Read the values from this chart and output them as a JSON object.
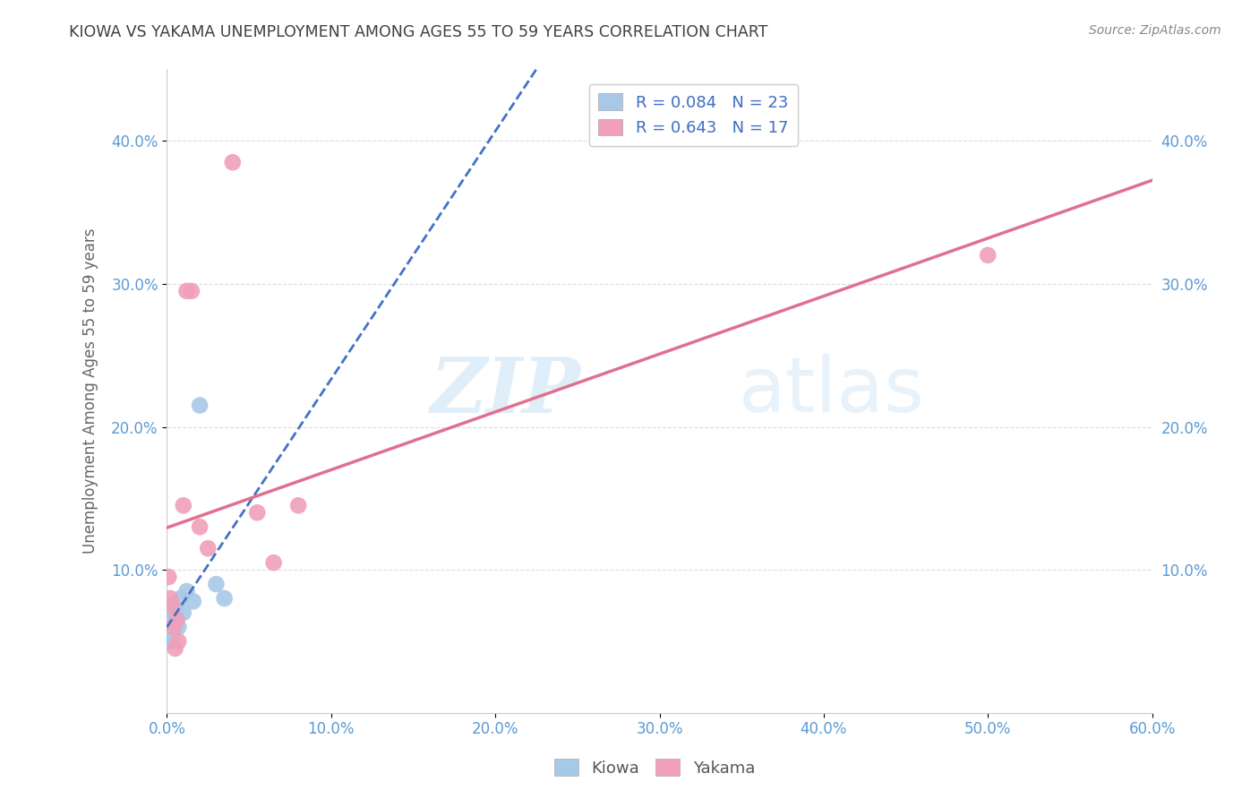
{
  "title": "KIOWA VS YAKAMA UNEMPLOYMENT AMONG AGES 55 TO 59 YEARS CORRELATION CHART",
  "source": "Source: ZipAtlas.com",
  "ylabel": "Unemployment Among Ages 55 to 59 years",
  "background_color": "#ffffff",
  "kiowa_color": "#a8c8e8",
  "yakama_color": "#f0a0b8",
  "kiowa_line_color": "#4472c4",
  "yakama_line_color": "#e07090",
  "kiowa_R": 0.084,
  "kiowa_N": 23,
  "yakama_R": 0.643,
  "yakama_N": 17,
  "xlim": [
    0.0,
    0.6
  ],
  "ylim": [
    0.0,
    0.45
  ],
  "xticks": [
    0.0,
    0.1,
    0.2,
    0.3,
    0.4,
    0.5,
    0.6
  ],
  "yticks": [
    0.1,
    0.2,
    0.3,
    0.4
  ],
  "kiowa_x": [
    0.0005,
    0.001,
    0.001,
    0.0015,
    0.002,
    0.002,
    0.002,
    0.003,
    0.003,
    0.003,
    0.004,
    0.004,
    0.005,
    0.005,
    0.006,
    0.007,
    0.008,
    0.01,
    0.012,
    0.016,
    0.02,
    0.03,
    0.035
  ],
  "kiowa_y": [
    0.055,
    0.058,
    0.062,
    0.05,
    0.06,
    0.065,
    0.07,
    0.055,
    0.06,
    0.075,
    0.058,
    0.068,
    0.062,
    0.072,
    0.065,
    0.06,
    0.08,
    0.07,
    0.085,
    0.078,
    0.215,
    0.09,
    0.08
  ],
  "yakama_x": [
    0.001,
    0.002,
    0.003,
    0.004,
    0.005,
    0.006,
    0.007,
    0.01,
    0.012,
    0.015,
    0.02,
    0.025,
    0.04,
    0.055,
    0.065,
    0.08,
    0.5
  ],
  "yakama_y": [
    0.095,
    0.08,
    0.075,
    0.06,
    0.045,
    0.065,
    0.05,
    0.145,
    0.295,
    0.295,
    0.13,
    0.115,
    0.385,
    0.14,
    0.105,
    0.145,
    0.32
  ],
  "watermark_zip": "ZIP",
  "watermark_atlas": "atlas",
  "grid_color": "#dddddd",
  "tick_color": "#5b9bd5",
  "label_color": "#666666",
  "title_color": "#404040",
  "source_color": "#888888"
}
